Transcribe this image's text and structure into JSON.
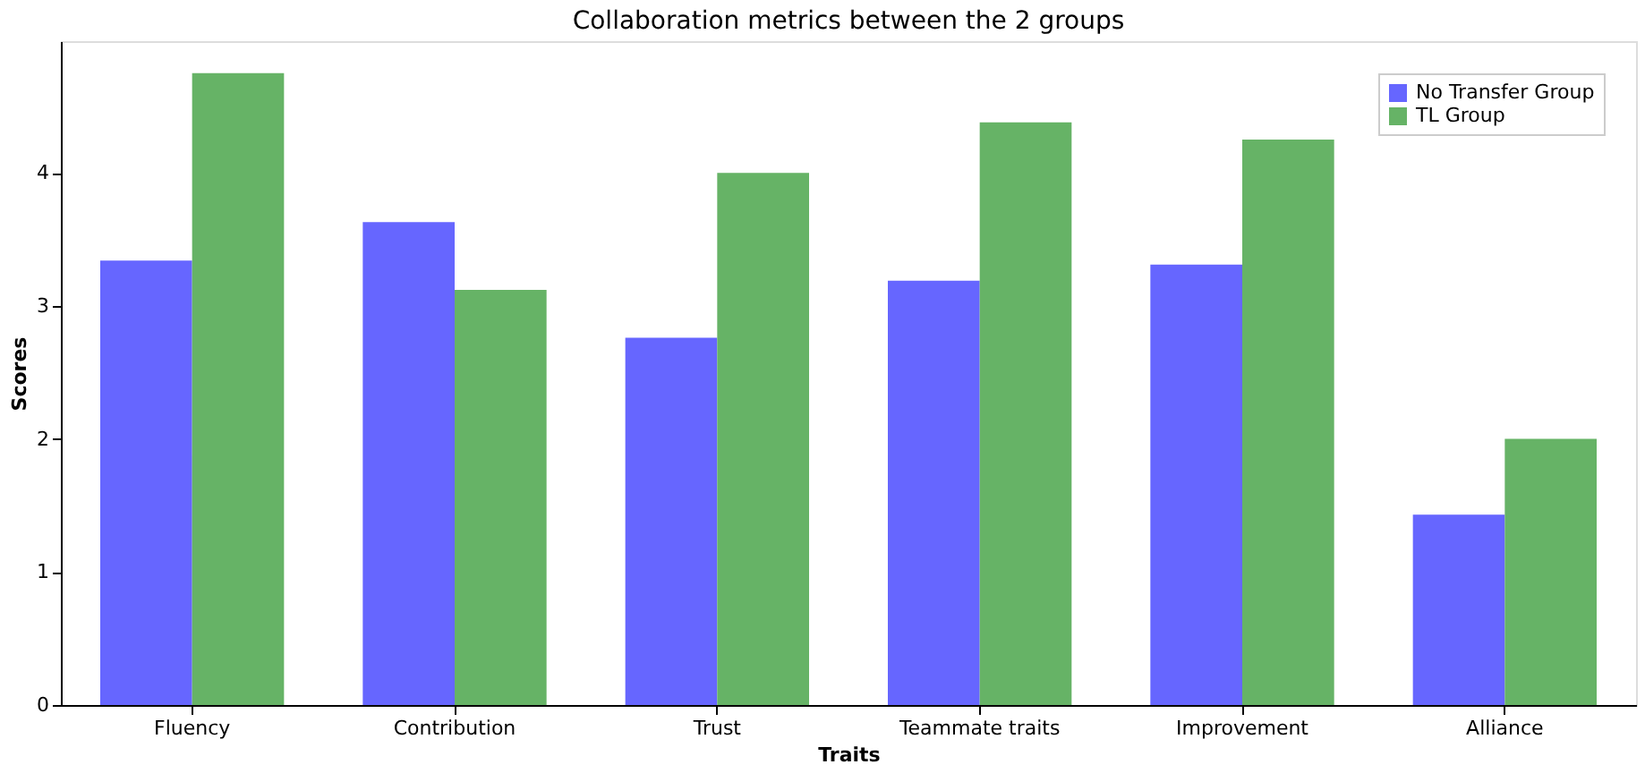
{
  "chart_data": {
    "type": "bar",
    "title": "Collaboration metrics between the 2 groups",
    "xlabel": "Traits",
    "ylabel": "Scores",
    "categories": [
      "Fluency",
      "Contribution",
      "Trust",
      "Teammate traits",
      "Improvement",
      "Alliance"
    ],
    "series": [
      {
        "name": "No Transfer Group",
        "color": "#6666ff",
        "values": [
          3.34,
          3.63,
          2.76,
          3.19,
          3.31,
          1.43
        ]
      },
      {
        "name": "TL Group",
        "color": "#66b366",
        "values": [
          4.75,
          3.12,
          4.0,
          4.38,
          4.25,
          2.0
        ]
      }
    ],
    "ylim": [
      0,
      4.99
    ],
    "yticks": [
      0,
      1,
      2,
      3,
      4
    ],
    "grid": false,
    "legend": "top right"
  }
}
